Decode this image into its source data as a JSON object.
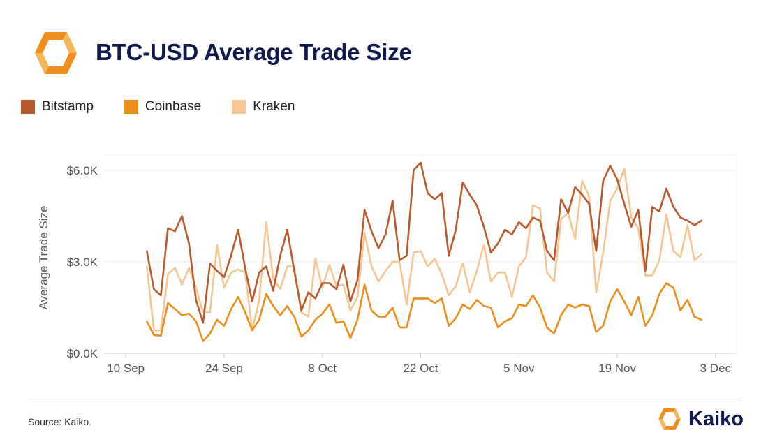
{
  "header": {
    "title": "BTC-USD Average Trade Size"
  },
  "footer": {
    "source": "Source: Kaiko.",
    "brand": "Kaiko"
  },
  "colors": {
    "bitstamp": "#b85a2b",
    "coinbase": "#ec8d1c",
    "kraken": "#f5c592",
    "title": "#0e1a4f",
    "logo_orange": "#f28c1c",
    "logo_light": "#f7b65a"
  },
  "icons": {
    "header_logo": "kaiko-logo-icon",
    "footer_logo": "kaiko-logo-icon"
  },
  "chart_data": {
    "type": "line",
    "title": "BTC-USD Average Trade Size",
    "xlabel": "",
    "ylabel": "Average Trade Size",
    "ylim": [
      0,
      6500
    ],
    "xlim": [
      "2023-09-07",
      "2023-12-06"
    ],
    "grid": "horizontal",
    "legend_position": "top-left",
    "x_start": "2023-09-13",
    "x_ticks": [
      {
        "date": "2023-09-10",
        "label": "10 Sep"
      },
      {
        "date": "2023-09-24",
        "label": "24 Sep"
      },
      {
        "date": "2023-10-08",
        "label": "8 Oct"
      },
      {
        "date": "2023-10-22",
        "label": "22 Oct"
      },
      {
        "date": "2023-11-05",
        "label": "5 Nov"
      },
      {
        "date": "2023-11-19",
        "label": "19 Nov"
      },
      {
        "date": "2023-12-03",
        "label": "3 Dec"
      }
    ],
    "y_ticks": [
      {
        "value": 0,
        "label": "$0.0K"
      },
      {
        "value": 3000,
        "label": "$3.0K"
      },
      {
        "value": 6000,
        "label": "$6.0K"
      }
    ],
    "series": [
      {
        "name": "Bitstamp",
        "color": "#b85a2b",
        "values": [
          3350,
          2100,
          1900,
          4100,
          4000,
          4500,
          3600,
          1750,
          1000,
          2950,
          2700,
          2500,
          3200,
          4050,
          2800,
          1700,
          2650,
          2850,
          2050,
          3200,
          4050,
          2700,
          1400,
          2000,
          1800,
          2300,
          2300,
          2100,
          2900,
          1700,
          2400,
          4700,
          4000,
          3450,
          3900,
          5000,
          3050,
          3200,
          6000,
          6250,
          5250,
          5050,
          5250,
          3200,
          4050,
          5600,
          5200,
          4850,
          4150,
          3300,
          3600,
          4050,
          3900,
          4300,
          4100,
          4450,
          4350,
          3350,
          3050,
          5050,
          4600,
          5450,
          5200,
          4900,
          3350,
          5650,
          6150,
          5700,
          4900,
          4150,
          4700,
          2700,
          4800,
          4650,
          5400,
          4800,
          4450,
          4350,
          4200,
          4350
        ]
      },
      {
        "name": "Coinbase",
        "color": "#ec8d1c",
        "values": [
          1050,
          600,
          580,
          1650,
          1450,
          1250,
          1300,
          1050,
          400,
          650,
          1100,
          900,
          1450,
          1850,
          1350,
          750,
          1100,
          1950,
          1550,
          1250,
          1550,
          1200,
          550,
          750,
          1100,
          1300,
          1600,
          1000,
          1050,
          500,
          1100,
          2250,
          1400,
          1200,
          1200,
          1500,
          850,
          850,
          1800,
          1800,
          1800,
          1650,
          1800,
          900,
          1150,
          1600,
          1450,
          1750,
          1550,
          1500,
          850,
          1050,
          1150,
          1600,
          1550,
          1900,
          1500,
          850,
          650,
          1250,
          1600,
          1500,
          1600,
          1550,
          700,
          900,
          1700,
          2100,
          1700,
          1250,
          1850,
          900,
          1250,
          1950,
          2300,
          2150,
          1400,
          1750,
          1200,
          1100
        ]
      },
      {
        "name": "Kraken",
        "color": "#f5c592",
        "values": [
          2850,
          750,
          750,
          2600,
          2800,
          2250,
          2800,
          2150,
          1350,
          1350,
          3550,
          2150,
          2650,
          2750,
          2650,
          750,
          1750,
          4300,
          2450,
          2100,
          2850,
          2850,
          1350,
          1200,
          3100,
          2150,
          2900,
          2200,
          2250,
          1400,
          1850,
          3950,
          2850,
          2350,
          2700,
          3000,
          3000,
          1600,
          3300,
          3350,
          2850,
          3100,
          2600,
          1900,
          2200,
          2950,
          2000,
          2700,
          3550,
          2350,
          2650,
          2650,
          1850,
          2850,
          3150,
          4850,
          4750,
          2650,
          2350,
          4400,
          4600,
          3750,
          5650,
          5150,
          2000,
          3300,
          5000,
          5400,
          6050,
          4450,
          4100,
          2550,
          2550,
          3050,
          4550,
          3350,
          3150,
          4200,
          3050,
          3250
        ]
      }
    ]
  }
}
